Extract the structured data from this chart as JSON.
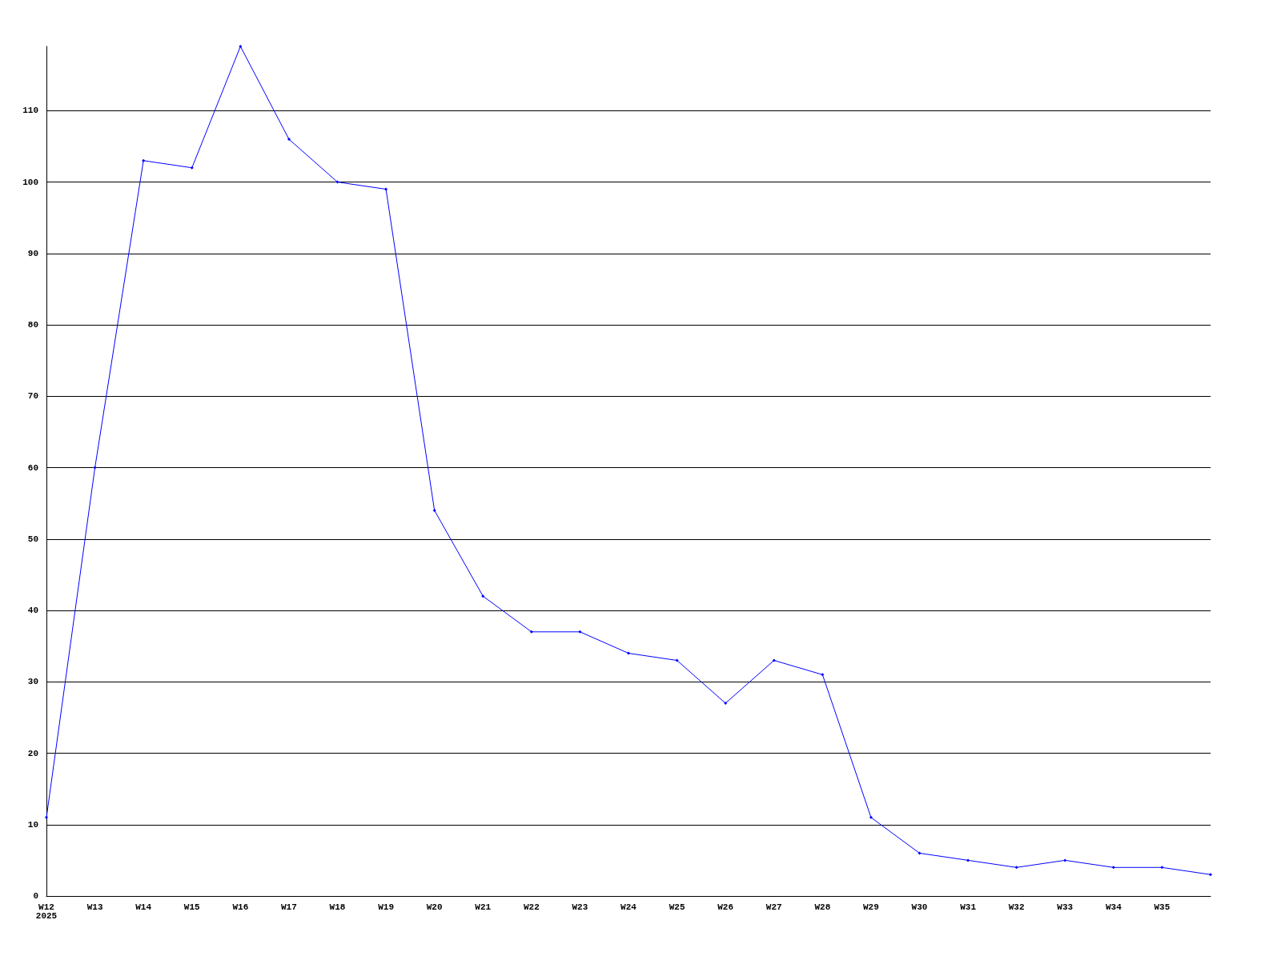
{
  "chart_data": {
    "type": "line",
    "categories": [
      "W12\n2025",
      "W13",
      "W14",
      "W15",
      "W16",
      "W17",
      "W18",
      "W19",
      "W20",
      "W21",
      "W22",
      "W23",
      "W24",
      "W25",
      "W26",
      "W27",
      "W28",
      "W29",
      "W30",
      "W31",
      "W32",
      "W33",
      "W34",
      "W35",
      null
    ],
    "series": [
      {
        "color": "#0000ff",
        "values": [
          11,
          60,
          103,
          102,
          119,
          106,
          100,
          99,
          54,
          42,
          37,
          37,
          34,
          33,
          27,
          33,
          31,
          11,
          6,
          5,
          4,
          5,
          4,
          4,
          3
        ]
      }
    ],
    "ylim": [
      0,
      119
    ],
    "yticks": [
      0,
      10,
      20,
      30,
      40,
      50,
      60,
      70,
      80,
      90,
      100,
      110
    ],
    "grid": "y",
    "marker": "diamond",
    "line_style": "solid"
  }
}
